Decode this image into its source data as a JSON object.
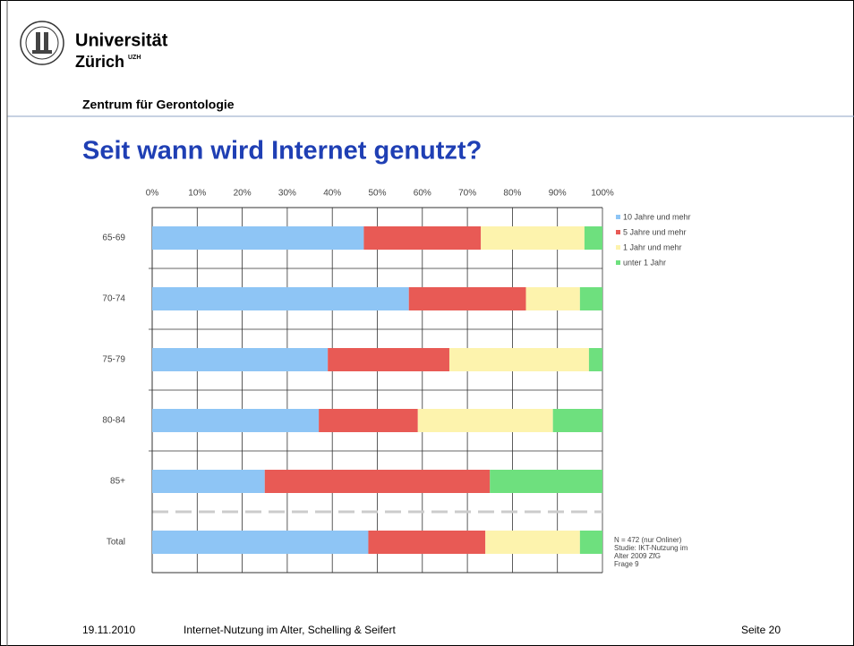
{
  "header": {
    "logo_line1": "Universität",
    "logo_line2": "Zürich",
    "logo_sup": "UZH",
    "department": "Zentrum für Gerontologie"
  },
  "footer": {
    "date": "19.11.2010",
    "text": "Internet-Nutzung im Alter, Schelling & Seifert",
    "page": "Seite 20"
  },
  "chart_data": {
    "type": "stacked-barh",
    "title": "Seit wann wird Internet genutzt?",
    "categories": [
      "65-69",
      "70-74",
      "75-79",
      "80-84",
      "85+",
      "Total"
    ],
    "series": [
      {
        "name": "10 Jahre und mehr",
        "color": "#8ec5f5",
        "values": [
          47,
          57,
          39,
          37,
          25,
          48
        ]
      },
      {
        "name": "5 Jahre und mehr",
        "color": "#e85a55",
        "values": [
          26,
          26,
          27,
          22,
          50,
          26
        ]
      },
      {
        "name": "1 Jahr und mehr",
        "color": "#fdf3ad",
        "values": [
          23,
          12,
          31,
          30,
          0,
          21
        ]
      },
      {
        "name": "unter 1 Jahr",
        "color": "#6ee07e",
        "values": [
          4,
          5,
          3,
          11,
          25,
          5
        ]
      }
    ],
    "xlim": [
      0,
      100
    ],
    "xticks": [
      {
        "value": 0,
        "label": "0%"
      },
      {
        "value": 10,
        "label": "10%"
      },
      {
        "value": 20,
        "label": "20%"
      },
      {
        "value": 30,
        "label": "30%"
      },
      {
        "value": 40,
        "label": "40%"
      },
      {
        "value": 50,
        "label": "50%"
      },
      {
        "value": 60,
        "label": "60%"
      },
      {
        "value": 70,
        "label": "70%"
      },
      {
        "value": 80,
        "label": "80%"
      },
      {
        "value": 90,
        "label": "90%"
      },
      {
        "value": 100,
        "label": "100%"
      }
    ],
    "grid": true,
    "legend": "upper right",
    "annotations": [
      "N = 472 (nur Onliner)",
      "Studie: IKT-Nutzung im",
      "Alter 2009 ZfG",
      "Frage 9"
    ]
  }
}
